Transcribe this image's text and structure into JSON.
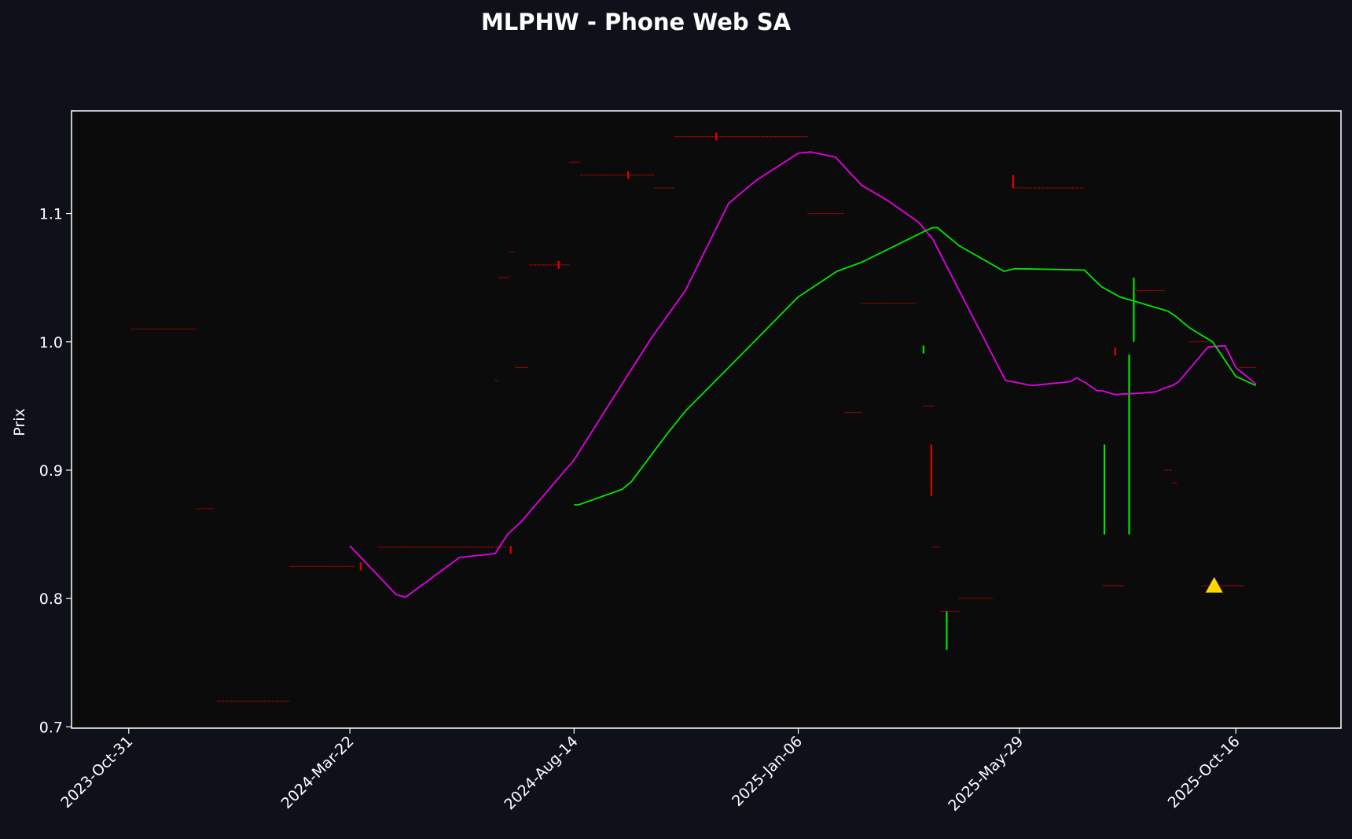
{
  "chart_data": {
    "type": "line",
    "title": "MLPHW - Phone Web SA",
    "xlabel": "",
    "ylabel": "Prix",
    "x_type": "date",
    "xlim": [
      "2023-09-24",
      "2025-12-23"
    ],
    "ylim": [
      0.699,
      1.18
    ],
    "x_ticks": [
      "2023-10-31",
      "2024-03-22",
      "2024-08-14",
      "2025-01-06",
      "2025-05-29",
      "2025-10-16"
    ],
    "x_tick_labels": [
      "2023-Oct-31",
      "2024-Mar-22",
      "2024-Aug-14",
      "2025-Jan-06",
      "2025-May-29",
      "2025-Oct-16"
    ],
    "y_ticks": [
      0.7,
      0.8,
      0.9,
      1.0,
      1.1
    ],
    "y_tick_labels": [
      "0.7",
      "0.8",
      "0.9",
      "1.0",
      "1.1"
    ],
    "grid": false,
    "colors": {
      "background": "#0e111a",
      "plot_background": "#0b0b0b",
      "frame": "#ffffff",
      "text": "#ffffff",
      "up": "#00e600",
      "down": "#e60000",
      "ma_fast": "#e600e6",
      "ma_slow": "#00e600",
      "marker": "#ffd700"
    },
    "series": [
      {
        "key": "ma_fast",
        "color": "#e600e6",
        "points": [
          [
            "2024-03-22",
            0.841
          ],
          [
            "2024-04-21",
            0.803
          ],
          [
            "2024-04-27",
            0.801
          ],
          [
            "2024-06-01",
            0.832
          ],
          [
            "2024-06-24",
            0.835
          ],
          [
            "2024-07-02",
            0.85
          ],
          [
            "2024-07-11",
            0.86
          ],
          [
            "2024-08-14",
            0.908
          ],
          [
            "2024-09-05",
            0.95
          ],
          [
            "2024-10-03",
            1.003
          ],
          [
            "2024-10-25",
            1.04
          ],
          [
            "2024-11-22",
            1.108
          ],
          [
            "2024-11-30",
            1.116
          ],
          [
            "2024-12-10",
            1.126
          ],
          [
            "2025-01-06",
            1.147
          ],
          [
            "2025-01-14",
            1.148
          ],
          [
            "2025-01-30",
            1.144
          ],
          [
            "2025-02-16",
            1.122
          ],
          [
            "2025-03-05",
            1.11
          ],
          [
            "2025-03-25",
            1.093
          ],
          [
            "2025-04-03",
            1.08
          ],
          [
            "2025-05-20",
            0.97
          ],
          [
            "2025-06-06",
            0.966
          ],
          [
            "2025-07-01",
            0.969
          ],
          [
            "2025-07-05",
            0.972
          ],
          [
            "2025-07-11",
            0.968
          ],
          [
            "2025-07-18",
            0.962
          ],
          [
            "2025-07-21",
            0.962
          ],
          [
            "2025-07-30",
            0.959
          ],
          [
            "2025-08-15",
            0.96
          ],
          [
            "2025-08-25",
            0.961
          ],
          [
            "2025-08-31",
            0.964
          ],
          [
            "2025-09-05",
            0.966
          ],
          [
            "2025-09-09",
            0.969
          ],
          [
            "2025-09-28",
            0.996
          ],
          [
            "2025-10-09",
            0.997
          ],
          [
            "2025-10-16",
            0.98
          ],
          [
            "2025-10-29",
            0.967
          ]
        ]
      },
      {
        "key": "ma_slow",
        "color": "#00e600",
        "points": [
          [
            "2024-08-14",
            0.873
          ],
          [
            "2024-08-17",
            0.873
          ],
          [
            "2024-09-14",
            0.885
          ],
          [
            "2024-09-20",
            0.891
          ],
          [
            "2024-10-13",
            0.928
          ],
          [
            "2024-10-25",
            0.946
          ],
          [
            "2024-11-22",
            0.98
          ],
          [
            "2025-01-06",
            1.035
          ],
          [
            "2025-01-31",
            1.055
          ],
          [
            "2025-02-16",
            1.062
          ],
          [
            "2025-03-30",
            1.087
          ],
          [
            "2025-04-03",
            1.089
          ],
          [
            "2025-04-06",
            1.089
          ],
          [
            "2025-04-14",
            1.081
          ],
          [
            "2025-04-20",
            1.075
          ],
          [
            "2025-05-19",
            1.055
          ],
          [
            "2025-05-26",
            1.057
          ],
          [
            "2025-07-10",
            1.056
          ],
          [
            "2025-07-21",
            1.043
          ],
          [
            "2025-08-02",
            1.035
          ],
          [
            "2025-09-02",
            1.024
          ],
          [
            "2025-09-07",
            1.02
          ],
          [
            "2025-09-16",
            1.011
          ],
          [
            "2025-10-01",
            1.0
          ],
          [
            "2025-10-16",
            0.973
          ],
          [
            "2025-10-29",
            0.966
          ]
        ]
      }
    ],
    "price_bars": [
      {
        "date": "2024-03-29",
        "open": 0.825,
        "close": 0.825,
        "high": 0.825,
        "low": 0.825,
        "direction": "down"
      },
      {
        "date": "2024-07-04",
        "open": 0.838,
        "close": 0.838,
        "high": 0.838,
        "low": 0.838,
        "direction": "down"
      },
      {
        "date": "2024-08-04",
        "open": 1.06,
        "close": 1.06,
        "high": 1.06,
        "low": 1.06,
        "direction": "down"
      },
      {
        "date": "2024-09-18",
        "open": 1.13,
        "close": 1.13,
        "high": 1.13,
        "low": 1.13,
        "direction": "down"
      },
      {
        "date": "2024-11-14",
        "open": 1.16,
        "close": 1.16,
        "high": 1.16,
        "low": 1.16,
        "direction": "down"
      },
      {
        "date": "2025-03-28",
        "open": 0.993,
        "close": 0.995,
        "high": 0.995,
        "low": 0.993,
        "direction": "up"
      },
      {
        "date": "2025-04-02",
        "open": 0.92,
        "close": 0.88,
        "high": 0.92,
        "low": 0.88,
        "direction": "down"
      },
      {
        "date": "2025-04-12",
        "open": 0.76,
        "close": 0.79,
        "high": 0.79,
        "low": 0.76,
        "direction": "up"
      },
      {
        "date": "2025-05-25",
        "open": 1.13,
        "close": 1.12,
        "high": 1.13,
        "low": 1.12,
        "direction": "down"
      },
      {
        "date": "2025-07-23",
        "open": 0.85,
        "close": 0.92,
        "high": 0.92,
        "low": 0.85,
        "direction": "up"
      },
      {
        "date": "2025-07-30",
        "open": 0.995,
        "close": 0.99,
        "high": 0.995,
        "low": 0.99,
        "direction": "down"
      },
      {
        "date": "2025-08-08",
        "open": 0.85,
        "close": 0.99,
        "high": 0.99,
        "low": 0.85,
        "direction": "up"
      },
      {
        "date": "2025-08-11",
        "open": 1.0,
        "close": 1.05,
        "high": 1.05,
        "low": 1.0,
        "direction": "up"
      }
    ],
    "flat_segments": [
      {
        "start": "2023-11-02",
        "end": "2023-12-14",
        "value": 1.01
      },
      {
        "start": "2023-12-14",
        "end": "2023-12-25",
        "value": 0.87
      },
      {
        "start": "2023-12-27",
        "end": "2024-02-12",
        "value": 0.72
      },
      {
        "start": "2024-02-12",
        "end": "2024-03-25",
        "value": 0.825
      },
      {
        "start": "2024-04-09",
        "end": "2024-07-01",
        "value": 0.84
      },
      {
        "start": "2024-06-24",
        "end": "2024-06-26",
        "value": 0.97
      },
      {
        "start": "2024-06-26",
        "end": "2024-07-03",
        "value": 1.05
      },
      {
        "start": "2024-07-03",
        "end": "2024-07-07",
        "value": 1.07
      },
      {
        "start": "2024-07-07",
        "end": "2024-07-16",
        "value": 0.98
      },
      {
        "start": "2024-07-16",
        "end": "2024-08-11",
        "value": 1.06
      },
      {
        "start": "2024-08-11",
        "end": "2024-08-18",
        "value": 1.14
      },
      {
        "start": "2024-08-18",
        "end": "2024-10-05",
        "value": 1.13
      },
      {
        "start": "2024-10-05",
        "end": "2024-10-18",
        "value": 1.12
      },
      {
        "start": "2024-10-18",
        "end": "2025-01-12",
        "value": 1.16
      },
      {
        "start": "2025-01-12",
        "end": "2025-02-05",
        "value": 1.1
      },
      {
        "start": "2025-02-05",
        "end": "2025-02-16",
        "value": 0.945
      },
      {
        "start": "2025-02-16",
        "end": "2025-03-23",
        "value": 1.03
      },
      {
        "start": "2025-03-28",
        "end": "2025-04-04",
        "value": 0.95
      },
      {
        "start": "2025-04-03",
        "end": "2025-04-08",
        "value": 0.84
      },
      {
        "start": "2025-04-08",
        "end": "2025-04-20",
        "value": 0.79
      },
      {
        "start": "2025-04-20",
        "end": "2025-05-12",
        "value": 0.8
      },
      {
        "start": "2025-05-25",
        "end": "2025-07-10",
        "value": 1.12
      },
      {
        "start": "2025-07-22",
        "end": "2025-08-05",
        "value": 0.81
      },
      {
        "start": "2025-08-11",
        "end": "2025-08-31",
        "value": 1.04
      },
      {
        "start": "2025-08-31",
        "end": "2025-09-05",
        "value": 0.9
      },
      {
        "start": "2025-09-05",
        "end": "2025-09-08",
        "value": 0.89
      },
      {
        "start": "2025-09-16",
        "end": "2025-09-28",
        "value": 1.0
      },
      {
        "start": "2025-09-24",
        "end": "2025-10-21",
        "value": 0.81
      },
      {
        "start": "2025-10-18",
        "end": "2025-10-29",
        "value": 0.98
      }
    ],
    "markers": [
      {
        "date": "2025-10-02",
        "value": 0.81,
        "shape": "triangle-up",
        "color": "#ffd700"
      }
    ]
  }
}
